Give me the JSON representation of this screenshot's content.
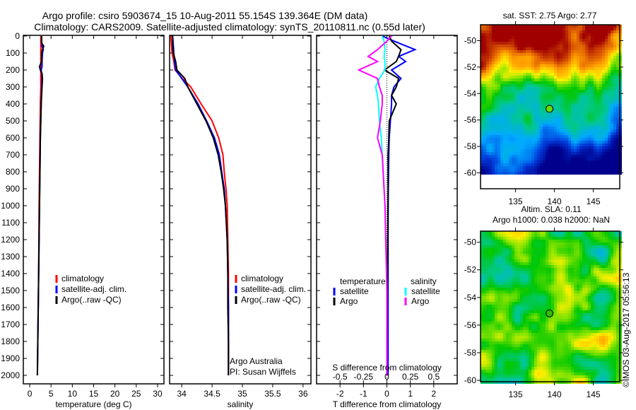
{
  "header": {
    "title_line1": "Argo profile: csiro 5903674_15 10-Aug-2011 55.154S 139.364E (DM data)",
    "title_line2": "Climatology: CARS2009. Satellite-adjusted climatology: synTS_20110811.nc (0.55d later)"
  },
  "colors": {
    "clim": "#ff0000",
    "sat": "#0000ff",
    "argo": "#000000",
    "sal_sat": "#00ffff",
    "sal_argo": "#ff00ff"
  },
  "credits": {
    "institution": "Argo Australia",
    "pi": "PI: Susan Wijffels",
    "stamp": "©IMOS 03-Aug-2017 05:56:13"
  },
  "chart_data": [
    {
      "type": "line",
      "id": "temperature",
      "xlabel": "temperature (deg C)",
      "ylabel": "",
      "xlim": [
        -1.5,
        31.5
      ],
      "ylim": [
        2050,
        0
      ],
      "xticks": [
        0,
        5,
        10,
        15,
        20,
        25,
        30
      ],
      "yticks": [
        0,
        100,
        200,
        300,
        400,
        500,
        600,
        700,
        800,
        900,
        1000,
        1100,
        1200,
        1300,
        1400,
        1500,
        1600,
        1700,
        1800,
        1900,
        2000
      ],
      "depth": [
        0,
        40,
        60,
        80,
        100,
        150,
        180,
        200,
        220,
        250,
        300,
        400,
        600,
        800,
        1000,
        1400,
        1800,
        2000
      ],
      "legend": [
        "climatology",
        "satellite-adj. clim.",
        "Argo(..raw -QC)"
      ],
      "series": [
        {
          "name": "climatology",
          "color": "#ff0000",
          "values": [
            2.6,
            2.6,
            2.6,
            2.6,
            2.6,
            2.6,
            2.6,
            2.6,
            2.6,
            2.6,
            2.6,
            2.5,
            2.4,
            2.3,
            2.2,
            2.1,
            1.9,
            1.8
          ]
        },
        {
          "name": "satellite-adj. clim.",
          "color": "#0000ff",
          "values": [
            2.8,
            2.8,
            2.9,
            3.2,
            3.0,
            2.9,
            2.9,
            2.7,
            2.8,
            2.9,
            2.8,
            2.7,
            2.5,
            2.4,
            2.3,
            2.1,
            1.9,
            1.8
          ]
        },
        {
          "name": "Argo(..raw -QC)",
          "color": "#000000",
          "values": [
            2.8,
            2.8,
            3.3,
            3.0,
            2.8,
            2.8,
            2.3,
            2.5,
            2.9,
            3.0,
            2.9,
            2.7,
            2.5,
            2.4,
            2.3,
            2.1,
            1.9,
            1.8
          ]
        }
      ]
    },
    {
      "type": "line",
      "id": "salinity",
      "xlabel": "salinity",
      "xlim": [
        33.8,
        36.13
      ],
      "ylim": [
        2050,
        0
      ],
      "xticks": [
        34,
        34.5,
        35,
        35.5,
        36
      ],
      "depth": [
        0,
        50,
        100,
        150,
        200,
        250,
        300,
        400,
        500,
        600,
        700,
        800,
        900,
        1000,
        1200,
        1400,
        1600,
        1800,
        2000
      ],
      "legend": [
        "climatology",
        "satellite-adj. clim.",
        "Argo(..raw -QC)"
      ],
      "series": [
        {
          "name": "climatology",
          "color": "#ff0000",
          "values": [
            33.82,
            33.83,
            33.84,
            33.87,
            33.89,
            34.01,
            34.15,
            34.32,
            34.5,
            34.61,
            34.68,
            34.7,
            34.73,
            34.75,
            34.76,
            34.77,
            34.77,
            34.77,
            34.77
          ]
        },
        {
          "name": "satellite-adj. clim.",
          "color": "#0000ff",
          "values": [
            33.85,
            33.86,
            33.87,
            33.88,
            33.9,
            34.0,
            34.1,
            34.27,
            34.41,
            34.54,
            34.62,
            34.66,
            34.7,
            34.72,
            34.75,
            34.76,
            34.77,
            34.77,
            34.77
          ]
        },
        {
          "name": "Argo(..raw -QC)",
          "color": "#000000",
          "values": [
            33.85,
            33.85,
            33.86,
            33.9,
            33.92,
            34.05,
            34.1,
            34.25,
            34.4,
            34.52,
            34.6,
            34.65,
            34.69,
            34.72,
            34.75,
            34.76,
            34.76,
            34.77,
            34.77
          ]
        }
      ]
    },
    {
      "type": "line",
      "id": "differences",
      "xlabel": "T difference from climatology",
      "x2label": "S difference from climatology",
      "xlim": [
        -3,
        3
      ],
      "x2lim": [
        -0.75,
        0.75
      ],
      "ylim": [
        2050,
        0
      ],
      "xticks": [
        -2,
        -1,
        0,
        1,
        2
      ],
      "x2ticks": [
        -0.5,
        -0.25,
        0,
        0.25,
        0.5
      ],
      "x2ticklabels": [
        "-0.5",
        "-0.25",
        "0",
        "0.25",
        "0.5"
      ],
      "legend_temperature": {
        "title": "temperature",
        "items": [
          "satellite",
          "Argo"
        ]
      },
      "legend_salinity": {
        "title": "salinity",
        "items": [
          "satellite",
          "Argo"
        ]
      },
      "depth": [
        0,
        30,
        80,
        120,
        150,
        200,
        250,
        300,
        350,
        400,
        500,
        600,
        700,
        1000,
        1500,
        2000
      ],
      "series": [
        {
          "name": "T satellite",
          "axis": "T",
          "color": "#0000ff",
          "values": [
            -0.2,
            0.3,
            1.2,
            0.5,
            0.8,
            0.2,
            0.6,
            0.3,
            0.2,
            0.2,
            0.15,
            0.1,
            0.08,
            0.05,
            0.05,
            0.05
          ]
        },
        {
          "name": "T Argo",
          "axis": "T",
          "color": "#000000",
          "values": [
            0.1,
            0.2,
            0.6,
            0.5,
            0.4,
            -0.1,
            0.5,
            0.4,
            0.2,
            0.4,
            0.1,
            0.08,
            0.05,
            0.05,
            0.02,
            0.0
          ]
        },
        {
          "name": "S satellite",
          "axis": "S",
          "color": "#00ffff",
          "values": [
            -0.05,
            -0.03,
            -0.02,
            -0.03,
            -0.02,
            -0.02,
            -0.08,
            -0.12,
            -0.1,
            -0.09,
            -0.08,
            -0.06,
            -0.05,
            -0.02,
            0.0,
            0.0
          ]
        },
        {
          "name": "S Argo",
          "axis": "S",
          "color": "#ff00ff",
          "values": [
            0.05,
            0.0,
            -0.1,
            -0.2,
            -0.1,
            -0.3,
            -0.1,
            -0.08,
            -0.05,
            -0.05,
            -0.07,
            -0.1,
            -0.05,
            -0.02,
            0.0,
            0.0
          ]
        }
      ]
    },
    {
      "type": "heatmap",
      "id": "sst_map",
      "title": "sat. SST: 2.75 Argo: 2.77",
      "xlim": [
        130.5,
        148.4
      ],
      "ylim": [
        -61.2,
        -48.8
      ],
      "xticks": [
        135,
        140,
        145
      ],
      "yticks": [
        -50,
        -52,
        -54,
        -56,
        -58,
        -60
      ],
      "float_position": {
        "lon": 139.364,
        "lat": -55.154
      }
    },
    {
      "type": "heatmap",
      "id": "sla_map",
      "title_line1": "Altim. SLA: 0.11",
      "title_line2": "Argo h1000: 0.038 h2000: NaN",
      "xlim": [
        130.5,
        148.4
      ],
      "ylim": [
        -60.1,
        -49.2
      ],
      "xticks": [
        135,
        140,
        145
      ],
      "yticks": [
        -50,
        -52,
        -54,
        -56,
        -58,
        -60
      ],
      "float_position": {
        "lon": 139.364,
        "lat": -55.154
      }
    }
  ]
}
